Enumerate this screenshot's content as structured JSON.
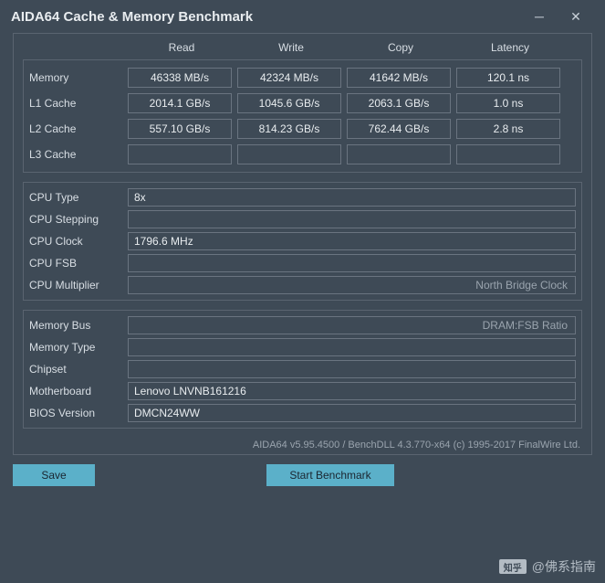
{
  "window": {
    "title": "AIDA64 Cache & Memory Benchmark"
  },
  "columns": [
    "Read",
    "Write",
    "Copy",
    "Latency"
  ],
  "bench": {
    "rows": [
      {
        "label": "Memory",
        "cells": [
          "46338 MB/s",
          "42324 MB/s",
          "41642 MB/s",
          "120.1 ns"
        ]
      },
      {
        "label": "L1 Cache",
        "cells": [
          "2014.1 GB/s",
          "1045.6 GB/s",
          "2063.1 GB/s",
          "1.0 ns"
        ]
      },
      {
        "label": "L2 Cache",
        "cells": [
          "557.10 GB/s",
          "814.23 GB/s",
          "762.44 GB/s",
          "2.8 ns"
        ]
      },
      {
        "label": "L3 Cache",
        "cells": [
          "",
          "",
          "",
          ""
        ]
      }
    ]
  },
  "cpu": {
    "rows": [
      {
        "label": "CPU Type",
        "value": "8x",
        "right": ""
      },
      {
        "label": "CPU Stepping",
        "value": "",
        "right": ""
      },
      {
        "label": "CPU Clock",
        "value": "1796.6 MHz",
        "right": ""
      },
      {
        "label": "CPU FSB",
        "value": "",
        "right": ""
      },
      {
        "label": "CPU Multiplier",
        "value": "",
        "right": "North Bridge Clock"
      }
    ]
  },
  "mem": {
    "rows": [
      {
        "label": "Memory Bus",
        "value": "",
        "right": "DRAM:FSB Ratio"
      },
      {
        "label": "Memory Type",
        "value": "",
        "right": ""
      },
      {
        "label": "Chipset",
        "value": "",
        "right": ""
      },
      {
        "label": "Motherboard",
        "value": "Lenovo LNVNB161216",
        "right": ""
      },
      {
        "label": "BIOS Version",
        "value": "DMCN24WW",
        "right": ""
      }
    ]
  },
  "footer": "AIDA64 v5.95.4500 / BenchDLL 4.3.770-x64  (c) 1995-2017 FinalWire Ltd.",
  "buttons": {
    "save": "Save",
    "start": "Start Benchmark"
  },
  "watermark": {
    "logo": "知乎",
    "text": "@佛系指南"
  },
  "colors": {
    "bg": "#3e4a56",
    "border": "#5a6470",
    "cell_border": "#6a7480",
    "text": "#c8d0d8",
    "text_bright": "#e8ecef",
    "text_dim": "#9aa4ae",
    "button_bg": "#5bb0c9",
    "button_fg": "#1a2530"
  }
}
